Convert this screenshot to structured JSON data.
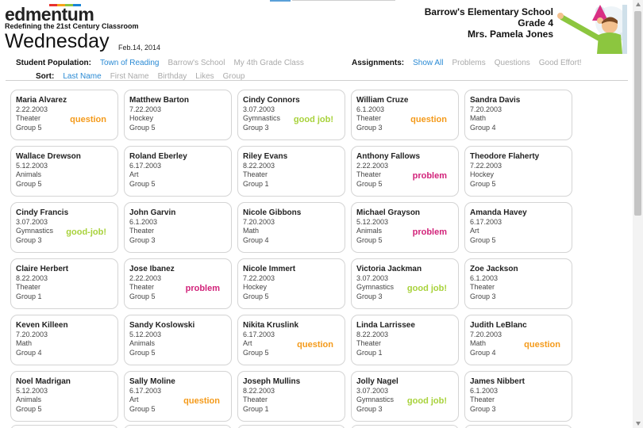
{
  "header": {
    "logo_text": "edmentum",
    "tagline": "Redefining the 21st Century Classroom",
    "day": "Wednesday",
    "date": "Feb.14, 2014",
    "school": "Barrow's Elementary School",
    "grade": "Grade 4",
    "teacher": "Mrs. Pamela Jones"
  },
  "filters": {
    "population_label": "Student Population:",
    "population_options": [
      "Town of Reading",
      "Barrow's School",
      "My 4th Grade Class"
    ],
    "assignments_label": "Assignments:",
    "assignment_options": [
      "Show All",
      "Problems",
      "Questions",
      "Good Effort!"
    ],
    "sort_label": "Sort:",
    "sort_options": [
      "Last Name",
      "First Name",
      "Birthday",
      "Likes",
      "Group"
    ]
  },
  "students": [
    {
      "name": "Maria Alvarez",
      "birthday": "2.22.2003",
      "likes": "Theater",
      "group": "Group 5",
      "tag": "question"
    },
    {
      "name": "Matthew Barton",
      "birthday": "7.22.2003",
      "likes": "Hockey",
      "group": "Group 5",
      "tag": ""
    },
    {
      "name": "Cindy Connors",
      "birthday": "3.07.2003",
      "likes": "Gymnastics",
      "group": "Group 3",
      "tag": "good job!"
    },
    {
      "name": "William Cruze",
      "birthday": "6.1.2003",
      "likes": "Theater",
      "group": "Group 3",
      "tag": "question"
    },
    {
      "name": "Sandra Davis",
      "birthday": "7.20.2003",
      "likes": "Math",
      "group": "Group 4",
      "tag": ""
    },
    {
      "name": "Wallace Drewson",
      "birthday": "5.12.2003",
      "likes": "Animals",
      "group": "Group 5",
      "tag": ""
    },
    {
      "name": "Roland Eberley",
      "birthday": "6.17.2003",
      "likes": "Art",
      "group": "Group 5",
      "tag": ""
    },
    {
      "name": "Riley Evans",
      "birthday": "8.22.2003",
      "likes": "Theater",
      "group": "Group 1",
      "tag": ""
    },
    {
      "name": "Anthony Fallows",
      "birthday": "2.22.2003",
      "likes": "Theater",
      "group": "Group 5",
      "tag": "problem"
    },
    {
      "name": "Theodore Flaherty",
      "birthday": "7.22.2003",
      "likes": "Hockey",
      "group": "Group 5",
      "tag": ""
    },
    {
      "name": "Cindy Francis",
      "birthday": "3.07.2003",
      "likes": "Gymnastics",
      "group": "Group 3",
      "tag": "good-job!"
    },
    {
      "name": "John Garvin",
      "birthday": "6.1.2003",
      "likes": "Theater",
      "group": "Group 3",
      "tag": ""
    },
    {
      "name": "Nicole Gibbons",
      "birthday": "7.20.2003",
      "likes": "Math",
      "group": "Group 4",
      "tag": ""
    },
    {
      "name": "Michael Grayson",
      "birthday": "5.12.2003",
      "likes": "Animals",
      "group": "Group 5",
      "tag": "problem"
    },
    {
      "name": "Amanda Havey",
      "birthday": "6.17.2003",
      "likes": "Art",
      "group": "Group 5",
      "tag": ""
    },
    {
      "name": "Claire Herbert",
      "birthday": "8.22.2003",
      "likes": "Theater",
      "group": "Group 1",
      "tag": ""
    },
    {
      "name": "Jose Ibanez",
      "birthday": "2.22.2003",
      "likes": "Theater",
      "group": "Group 5",
      "tag": "problem"
    },
    {
      "name": "Nicole Immert",
      "birthday": "7.22.2003",
      "likes": "Hockey",
      "group": "Group 5",
      "tag": ""
    },
    {
      "name": "Victoria Jackman",
      "birthday": "3.07.2003",
      "likes": "Gymnastics",
      "group": "Group 3",
      "tag": "good job!"
    },
    {
      "name": "Zoe Jackson",
      "birthday": "6.1.2003",
      "likes": "Theater",
      "group": "Group 3",
      "tag": ""
    },
    {
      "name": "Keven Killeen",
      "birthday": "7.20.2003",
      "likes": "Math",
      "group": "Group 4",
      "tag": ""
    },
    {
      "name": "Sandy Koslowski",
      "birthday": "5.12.2003",
      "likes": "Animals",
      "group": "Group 5",
      "tag": ""
    },
    {
      "name": "Nikita Kruslink",
      "birthday": "6.17.2003",
      "likes": "Art",
      "group": "Group 5",
      "tag": "question"
    },
    {
      "name": "Linda Larrissee",
      "birthday": "8.22.2003",
      "likes": "Theater",
      "group": "Group 1",
      "tag": ""
    },
    {
      "name": "Judith LeBlanc",
      "birthday": "7.20.2003",
      "likes": "Math",
      "group": "Group 4",
      "tag": "question"
    },
    {
      "name": "Noel Madrigan",
      "birthday": "5.12.2003",
      "likes": "Animals",
      "group": "Group 5",
      "tag": ""
    },
    {
      "name": "Sally Moline",
      "birthday": "6.17.2003",
      "likes": "Art",
      "group": "Group 5",
      "tag": "question"
    },
    {
      "name": "Joseph Mullins",
      "birthday": "8.22.2003",
      "likes": "Theater",
      "group": "Group 1",
      "tag": ""
    },
    {
      "name": "Jolly Nagel",
      "birthday": "3.07.2003",
      "likes": "Gymnastics",
      "group": "Group 3",
      "tag": "good job!"
    },
    {
      "name": "James Nibbert",
      "birthday": "6.1.2003",
      "likes": "Theater",
      "group": "Group 3",
      "tag": ""
    }
  ],
  "colors": {
    "accent": "#2a8ad4",
    "question": "#f49a1a",
    "good_job": "#a8d23b",
    "problem": "#d2237a"
  }
}
